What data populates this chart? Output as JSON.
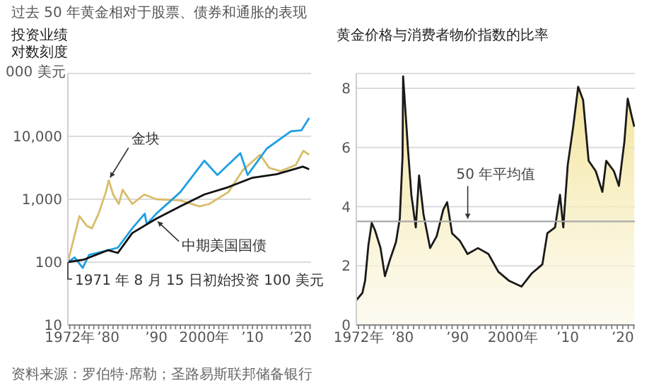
{
  "chart_data": [
    {
      "type": "line",
      "title": "过去 50 年黄金相对于股票、债券和通胀的表现",
      "subtitle": "投资业绩",
      "ylabel": "000 美元",
      "log": "y",
      "grid": "y",
      "marker": "none",
      "xlim": [
        1971.6,
        2022.2
      ],
      "xticks": [
        {
          "value": 1972,
          "label": "1972年"
        },
        {
          "value": 1973,
          "label": null
        },
        {
          "value": 1974,
          "label": null
        },
        {
          "value": 1975,
          "label": null
        },
        {
          "value": 1976,
          "label": null
        },
        {
          "value": 1977,
          "label": null
        },
        {
          "value": 1978,
          "label": null
        },
        {
          "value": 1979,
          "label": null
        },
        {
          "value": 1980,
          "label": "’80"
        },
        {
          "value": 1981,
          "label": null
        },
        {
          "value": 1982,
          "label": null
        },
        {
          "value": 1983,
          "label": null
        },
        {
          "value": 1984,
          "label": null
        },
        {
          "value": 1985,
          "label": null
        },
        {
          "value": 1986,
          "label": null
        },
        {
          "value": 1987,
          "label": null
        },
        {
          "value": 1988,
          "label": null
        },
        {
          "value": 1989,
          "label": null
        },
        {
          "value": 1990,
          "label": "’90"
        },
        {
          "value": 1991,
          "label": null
        },
        {
          "value": 1992,
          "label": null
        },
        {
          "value": 1993,
          "label": null
        },
        {
          "value": 1994,
          "label": null
        },
        {
          "value": 1995,
          "label": null
        },
        {
          "value": 1996,
          "label": null
        },
        {
          "value": 1997,
          "label": null
        },
        {
          "value": 1998,
          "label": null
        },
        {
          "value": 1999,
          "label": null
        },
        {
          "value": 2000,
          "label": "2000年"
        },
        {
          "value": 2001,
          "label": null
        },
        {
          "value": 2002,
          "label": null
        },
        {
          "value": 2003,
          "label": null
        },
        {
          "value": 2004,
          "label": null
        },
        {
          "value": 2005,
          "label": null
        },
        {
          "value": 2006,
          "label": null
        },
        {
          "value": 2007,
          "label": null
        },
        {
          "value": 2008,
          "label": null
        },
        {
          "value": 2009,
          "label": null
        },
        {
          "value": 2010,
          "label": "’10"
        },
        {
          "value": 2011,
          "label": null
        },
        {
          "value": 2012,
          "label": null
        },
        {
          "value": 2013,
          "label": null
        },
        {
          "value": 2014,
          "label": null
        },
        {
          "value": 2015,
          "label": null
        },
        {
          "value": 2016,
          "label": null
        },
        {
          "value": 2017,
          "label": null
        },
        {
          "value": 2018,
          "label": null
        },
        {
          "value": 2019,
          "label": null
        },
        {
          "value": 2020,
          "label": "’20"
        },
        {
          "value": 2021,
          "label": null
        },
        {
          "value": 2022,
          "label": null
        }
      ],
      "ylim": [
        10,
        100000
      ],
      "yticks": [
        10,
        100,
        {
          "value": 1000,
          "label": "1,000"
        },
        {
          "value": 10000,
          "label": "10,000"
        },
        {
          "value": 100000,
          "label": null
        }
      ],
      "series": [
        {
          "name": "金块",
          "color": "#d8bd6a",
          "x": [
            1971.6,
            1974,
            1975.5,
            1976.6,
            1978,
            1979.5,
            1980.1,
            1981,
            1982.2,
            1983,
            1985,
            1987.5,
            1990,
            1995,
            1999,
            2001,
            2005,
            2008,
            2011.6,
            2013.5,
            2015.8,
            2019,
            2020.6,
            2021.8
          ],
          "values": [
            100,
            540,
            380,
            345,
            590,
            1300,
            2000,
            1200,
            840,
            1420,
            840,
            1190,
            1000,
            960,
            770,
            840,
            1300,
            2900,
            5100,
            3150,
            2800,
            3500,
            5900,
            5100
          ]
        },
        {
          "color": "#1e9fe3",
          "x": [
            1971.6,
            1973,
            1974.7,
            1976,
            1980,
            1982,
            1985,
            1987.6,
            1988,
            1990,
            1995,
            2000,
            2002.7,
            2007.5,
            2009,
            2013,
            2018,
            2020.2,
            2021.8
          ],
          "values": [
            100,
            119,
            81,
            130,
            155,
            170,
            345,
            590,
            400,
            590,
            1300,
            4100,
            2430,
            5400,
            2430,
            6400,
            12000,
            12500,
            19600
          ]
        },
        {
          "name": "中期美国国债",
          "color": "#111111",
          "x": [
            1971.6,
            1975,
            1980,
            1982,
            1985,
            1990,
            1995,
            2000,
            2005,
            2010,
            2015,
            2020.5,
            2021.8
          ],
          "values": [
            100,
            110,
            155,
            140,
            290,
            490,
            770,
            1190,
            1560,
            2200,
            2500,
            3300,
            3000
          ]
        }
      ],
      "annotations": [
        "对数刻度",
        {
          "text": "1971 年 8 月 15 日初始投资 100 美元",
          "x": 1971.6,
          "y": 100
        },
        "资料来源：罗伯特·席勒；圣路易斯联邦储备银行"
      ]
    },
    {
      "type": "area",
      "title": "黄金价格与消费者物价指数的比率",
      "grid": "y",
      "marker": "none",
      "xlim": [
        1971.6,
        2022.2
      ],
      "xticks": [
        {
          "value": 1972,
          "label": "1972年"
        },
        {
          "value": 1973,
          "label": null
        },
        {
          "value": 1974,
          "label": null
        },
        {
          "value": 1975,
          "label": null
        },
        {
          "value": 1976,
          "label": null
        },
        {
          "value": 1977,
          "label": null
        },
        {
          "value": 1978,
          "label": null
        },
        {
          "value": 1979,
          "label": null
        },
        {
          "value": 1980,
          "label": "’80"
        },
        {
          "value": 1981,
          "label": null
        },
        {
          "value": 1982,
          "label": null
        },
        {
          "value": 1983,
          "label": null
        },
        {
          "value": 1984,
          "label": null
        },
        {
          "value": 1985,
          "label": null
        },
        {
          "value": 1986,
          "label": null
        },
        {
          "value": 1987,
          "label": null
        },
        {
          "value": 1988,
          "label": null
        },
        {
          "value": 1989,
          "label": null
        },
        {
          "value": 1990,
          "label": "’90"
        },
        {
          "value": 1991,
          "label": null
        },
        {
          "value": 1992,
          "label": null
        },
        {
          "value": 1993,
          "label": null
        },
        {
          "value": 1994,
          "label": null
        },
        {
          "value": 1995,
          "label": null
        },
        {
          "value": 1996,
          "label": null
        },
        {
          "value": 1997,
          "label": null
        },
        {
          "value": 1998,
          "label": null
        },
        {
          "value": 1999,
          "label": null
        },
        {
          "value": 2000,
          "label": "2000年"
        },
        {
          "value": 2001,
          "label": null
        },
        {
          "value": 2002,
          "label": null
        },
        {
          "value": 2003,
          "label": null
        },
        {
          "value": 2004,
          "label": null
        },
        {
          "value": 2005,
          "label": null
        },
        {
          "value": 2006,
          "label": null
        },
        {
          "value": 2007,
          "label": null
        },
        {
          "value": 2008,
          "label": null
        },
        {
          "value": 2009,
          "label": null
        },
        {
          "value": 2010,
          "label": "’10"
        },
        {
          "value": 2011,
          "label": null
        },
        {
          "value": 2012,
          "label": null
        },
        {
          "value": 2013,
          "label": null
        },
        {
          "value": 2014,
          "label": null
        },
        {
          "value": 2015,
          "label": null
        },
        {
          "value": 2016,
          "label": null
        },
        {
          "value": 2017,
          "label": null
        },
        {
          "value": 2018,
          "label": null
        },
        {
          "value": 2019,
          "label": null
        },
        {
          "value": 2020,
          "label": "’20"
        },
        {
          "value": 2021,
          "label": null
        },
        {
          "value": 2022,
          "label": null
        }
      ],
      "ylim": [
        0,
        8.5
      ],
      "yticks": [
        0,
        2,
        4,
        6,
        8
      ],
      "series": [
        {
          "color": "#1a1a1a",
          "x": [
            1971.6,
            1972.7,
            1973.2,
            1973.8,
            1974.4,
            1975,
            1976,
            1976.8,
            1977.7,
            1978.8,
            1979.5,
            1980,
            1980.1,
            1980.5,
            1981,
            1981.6,
            1982.4,
            1983,
            1983.8,
            1985,
            1986.2,
            1987.4,
            1988.1,
            1989,
            1990.4,
            1991.8,
            1993.7,
            1995.6,
            1997.4,
            1999.3,
            2001.6,
            2003.5,
            2005.4,
            2006.3,
            2007.7,
            2008.6,
            2009.2,
            2010,
            2011,
            2011.9,
            2012.8,
            2013.8,
            2015.1,
            2016.3,
            2017,
            2018.4,
            2019.3,
            2020.3,
            2020.9,
            2021.7,
            2022.1
          ],
          "values": [
            0.84,
            1.08,
            1.5,
            2.7,
            3.45,
            3.2,
            2.6,
            1.65,
            2.2,
            2.8,
            3.6,
            5.7,
            8.4,
            7.3,
            5.9,
            4.4,
            3.3,
            5.05,
            3.75,
            2.6,
            3.0,
            3.9,
            4.15,
            3.1,
            2.85,
            2.4,
            2.6,
            2.4,
            1.8,
            1.5,
            1.3,
            1.75,
            2.05,
            3.1,
            3.3,
            4.4,
            3.3,
            5.4,
            6.7,
            8.05,
            7.6,
            5.55,
            5.2,
            4.5,
            5.55,
            5.2,
            4.7,
            6.2,
            7.65,
            7.0,
            6.7
          ]
        }
      ],
      "ref_lines": [
        {
          "axis": "y",
          "value": 3.5,
          "label": "50 年平均值",
          "color": "#a8a8a8"
        }
      ]
    }
  ]
}
